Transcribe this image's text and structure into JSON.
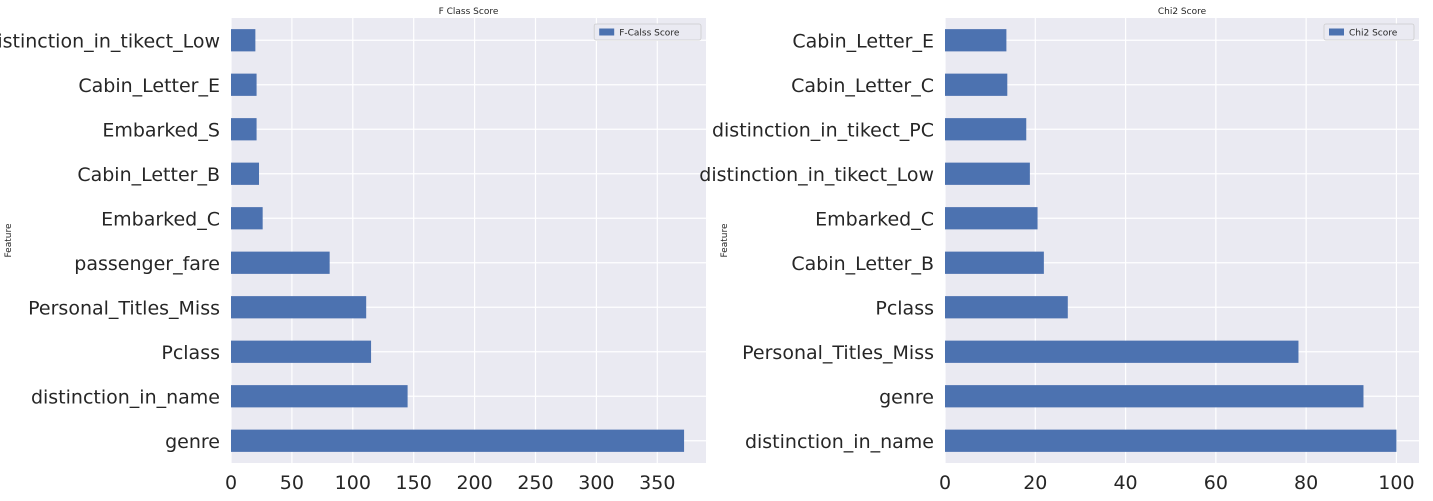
{
  "chart_data": [
    {
      "type": "bar",
      "orientation": "horizontal",
      "title": "F Class Score",
      "ylabel": "Feature",
      "xlabel": "",
      "categories": [
        "distinction_in_tikect_Low",
        "Cabin_Letter_E",
        "Embarked_S",
        "Cabin_Letter_B",
        "Embarked_C",
        "passenger_fare",
        "Personal_Titles_Miss",
        "Pclass",
        "distinction_in_name",
        "genre"
      ],
      "series": [
        {
          "name": "F-Calss Score",
          "values": [
            20,
            21,
            21,
            23,
            26,
            81,
            111,
            115,
            145,
            372
          ]
        }
      ],
      "xlim": [
        0,
        390
      ],
      "xticks": [
        0,
        50,
        100,
        150,
        200,
        250,
        300,
        350
      ],
      "grid": true,
      "legend": "top-right",
      "color": "#4c72b0"
    },
    {
      "type": "bar",
      "orientation": "horizontal",
      "title": "Chi2 Score",
      "ylabel": "Feature",
      "xlabel": "",
      "categories": [
        "Cabin_Letter_E",
        "Cabin_Letter_C",
        "distinction_in_tikect_PC",
        "distinction_in_tikect_Low",
        "Embarked_C",
        "Cabin_Letter_B",
        "Pclass",
        "Personal_Titles_Miss",
        "genre",
        "distinction_in_name"
      ],
      "series": [
        {
          "name": "Chi2 Score",
          "values": [
            13.6,
            13.8,
            18.0,
            18.8,
            20.5,
            21.9,
            27.2,
            78.3,
            92.7,
            100.0
          ]
        }
      ],
      "xlim": [
        0,
        105
      ],
      "xticks": [
        0,
        20,
        40,
        60,
        80,
        100
      ],
      "grid": true,
      "legend": "top-right",
      "color": "#4c72b0"
    }
  ]
}
